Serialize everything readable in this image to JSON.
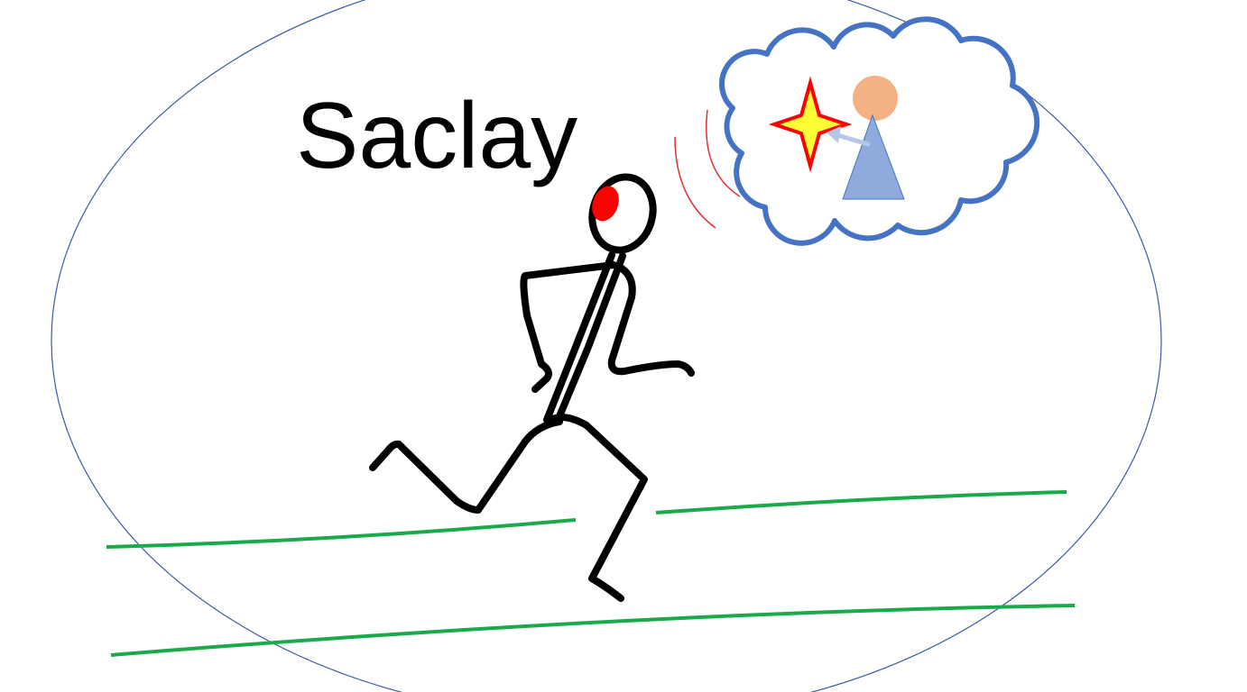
{
  "scene": {
    "title": "Saclay",
    "colors": {
      "ellipse_outline": "#3b5ba5",
      "track_lines": "#1aaa4a",
      "runner": "#000000",
      "head_spot": "#ff0000",
      "signal_waves": "#e03030",
      "cloud_outline": "#4472c4",
      "star_fill": "#ffff33",
      "star_outline": "#ff0000",
      "person_head": "#f4b183",
      "person_body": "#8faadc",
      "arrow": "#b4c7e7"
    },
    "icons": [
      "running-stick-figure",
      "thought-cloud-icon",
      "star-icon",
      "person-icon",
      "signal-waves-icon"
    ]
  }
}
